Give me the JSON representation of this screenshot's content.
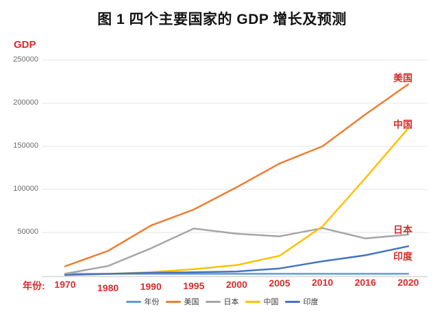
{
  "title": "图 1  四个主要国家的 GDP 增长及预测",
  "axis": {
    "y_label": "GDP",
    "x_prefix": "年份:",
    "y_ticks": [
      250000,
      200000,
      150000,
      100000,
      50000
    ]
  },
  "colors": {
    "label_red": "#d92b2b",
    "grid": "#e3e3e3",
    "axis_line": "#d5d5d5",
    "tick_text": "#6b6b6b",
    "title_text": "#141414"
  },
  "chart_data": {
    "type": "line",
    "title": "图 1 四个主要国家的 GDP 增长及预测",
    "ylabel": "GDP",
    "xlabel": "年份",
    "ylim": [
      0,
      250000
    ],
    "grid": true,
    "legend_position": "bottom",
    "categories": [
      "1970",
      "1980",
      "1990",
      "1995",
      "2000",
      "2005",
      "2010",
      "2016",
      "2020"
    ],
    "series": [
      {
        "name": "年份",
        "color": "#5B9BD5",
        "end_label": false,
        "values": [
          1970,
          1980,
          1990,
          1995,
          2000,
          2005,
          2010,
          2016,
          2020
        ]
      },
      {
        "name": "美国",
        "color": "#ED7D31",
        "end_label": true,
        "values": [
          10700,
          28600,
          58000,
          76600,
          102500,
          130000,
          150000,
          187000,
          222000
        ]
      },
      {
        "name": "日本",
        "color": "#A5A5A5",
        "end_label": true,
        "values": [
          2100,
          11000,
          31500,
          54500,
          48500,
          45500,
          55000,
          43000,
          47500
        ]
      },
      {
        "name": "中国",
        "color": "#FFC000",
        "end_label": true,
        "values": [
          920,
          1900,
          3900,
          7300,
          12100,
          22900,
          57000,
          113000,
          171000
        ]
      },
      {
        "name": "印度",
        "color": "#4472C4",
        "end_label": true,
        "values": [
          620,
          1900,
          3200,
          3700,
          4700,
          8200,
          16500,
          23500,
          34000
        ]
      }
    ]
  }
}
